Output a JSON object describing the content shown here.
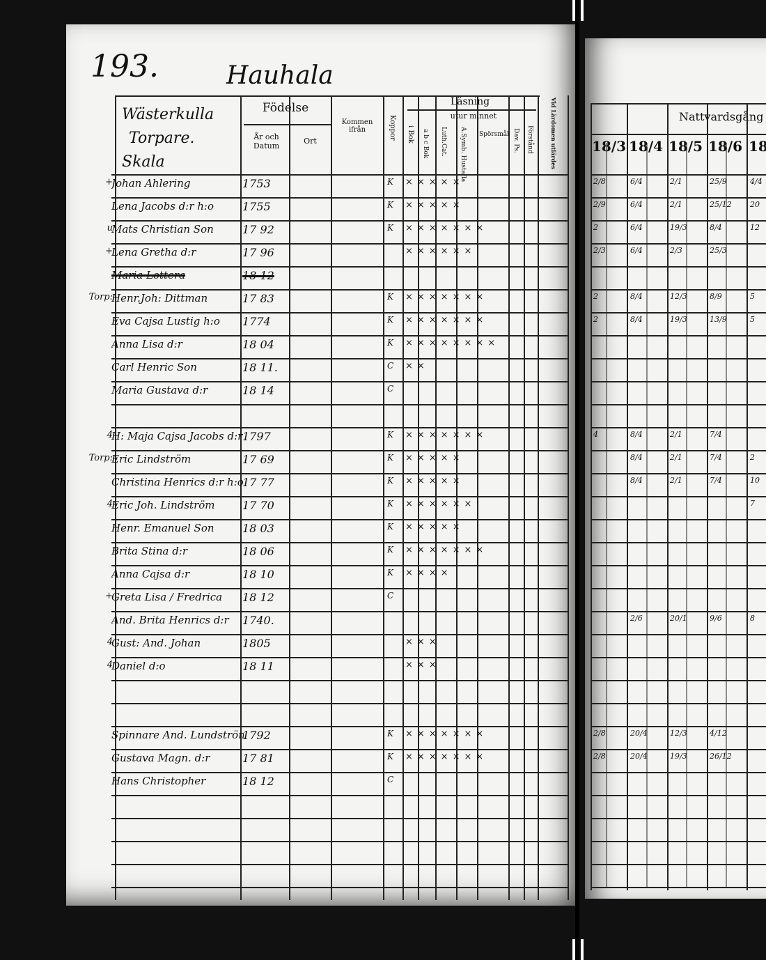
{
  "page_number": "193.",
  "place": "Hauhala",
  "household": {
    "line1": "Wästerkulla",
    "line2": "Torpare.",
    "line3": "Skala"
  },
  "headers": {
    "fodelse": "Födelse",
    "ar_och_datum": "År och Datum",
    "ort": "Ort",
    "kommen_ifran": "Kommen ifrån",
    "koppor": "Koppor",
    "lasning": "Läsning",
    "utur_minnet": "utur minnet",
    "i_bok": "i Bok",
    "a_b_c_bok": "a b c Bok",
    "luth_cat": "Luth.Cat.",
    "a_symb_hustafla": "A.Symb. Hustafla",
    "sporsmal": "Spörsmål",
    "dav_ps": "Dav. Ps.",
    "forstand": "Förstånd",
    "nattvard_hdr": "Vid Lärdomen utlärdes",
    "nattvardsgang": "Nattvardsgång",
    "years": [
      "18/3",
      "18/4",
      "18/5",
      "18/6",
      "18"
    ]
  },
  "rows": [
    {
      "margin": "+",
      "name": "Johan Ahlering",
      "year": "1753",
      "kopp": "K",
      "marks": "×××××",
      "comm": [
        "2/8",
        "6/4",
        "2/1",
        "25/9",
        "4/4"
      ]
    },
    {
      "margin": "",
      "name": "Lena Jacobs d:r h:o",
      "year": "1755",
      "kopp": "K",
      "marks": "×××××",
      "comm": [
        "2/9",
        "6/4",
        "2/1",
        "25/12",
        "20"
      ]
    },
    {
      "margin": "u",
      "name": "Mats Christian Son",
      "year": "17 92",
      "kopp": "K",
      "marks": "×××××××",
      "comm": [
        "2",
        "6/4",
        "19/3",
        "8/4",
        "12"
      ]
    },
    {
      "margin": "+",
      "name": "Lena Gretha d:r",
      "year": "17 96",
      "kopp": "",
      "marks": "××××××",
      "comm": [
        "2/3",
        "6/4",
        "2/3",
        "25/3",
        ""
      ]
    },
    {
      "margin": "",
      "name": "Maria Lottera",
      "year": "18 12",
      "struck": true,
      "kopp": "",
      "marks": "",
      "comm": [
        "",
        "",
        "",
        "",
        ""
      ]
    },
    {
      "margin": "Torp:",
      "name": "Henr.Joh: Dittman",
      "year": "17 83",
      "kopp": "K",
      "marks": "×××××××",
      "comm": [
        "2",
        "8/4",
        "12/3",
        "8/9",
        "5"
      ]
    },
    {
      "margin": "",
      "name": "Eva Cajsa Lustig h:o",
      "year": "1774",
      "kopp": "K",
      "marks": "×××××××",
      "comm": [
        "2",
        "8/4",
        "19/3",
        "13/9",
        "5"
      ]
    },
    {
      "margin": "",
      "name": "Anna Lisa d:r",
      "year": "18 04",
      "kopp": "K",
      "marks": "××××××××",
      "comm": [
        "",
        "",
        "",
        "",
        ""
      ]
    },
    {
      "margin": "",
      "name": "Carl Henric Son",
      "year": "18 11.",
      "kopp": "C",
      "marks": "××",
      "comm": [
        "",
        "",
        "",
        "",
        ""
      ]
    },
    {
      "margin": "",
      "name": "Maria Gustava d:r",
      "year": "18 14",
      "kopp": "C",
      "marks": "",
      "comm": [
        "",
        "",
        "",
        "",
        ""
      ]
    },
    {
      "margin": "",
      "name": "",
      "year": "",
      "kopp": "",
      "marks": "",
      "comm": [
        "",
        "",
        "",
        "",
        ""
      ]
    },
    {
      "margin": "4",
      "name": "H: Maja Cajsa Jacobs d:r",
      "year": "1797",
      "kopp": "K",
      "marks": "×××××××",
      "comm": [
        "4",
        "8/4",
        "2/1",
        "7/4",
        ""
      ]
    },
    {
      "margin": "Torp:",
      "name": "Eric Lindström",
      "year": "17 69",
      "kopp": "K",
      "marks": "×××××",
      "comm": [
        "",
        "8/4",
        "2/1",
        "7/4",
        "2"
      ]
    },
    {
      "margin": "",
      "name": "Christina Henrics d:r h:o",
      "year": "17 77",
      "kopp": "K",
      "marks": "×××××",
      "comm": [
        "",
        "8/4",
        "2/1",
        "7/4",
        "10"
      ]
    },
    {
      "margin": "4",
      "name": "Eric Joh. Lindström",
      "year": "17 70",
      "kopp": "K",
      "marks": "××××××",
      "comm": [
        "",
        "",
        "",
        "",
        "7"
      ]
    },
    {
      "margin": "",
      "name": "Henr. Emanuel Son",
      "year": "18 03",
      "kopp": "K",
      "marks": "×××××",
      "comm": [
        "",
        "",
        "",
        "",
        ""
      ]
    },
    {
      "margin": "",
      "name": "Brita Stina d:r",
      "year": "18 06",
      "kopp": "K",
      "marks": "×××××××",
      "comm": [
        "",
        "",
        "",
        "",
        ""
      ]
    },
    {
      "margin": "",
      "name": "Anna Cajsa d:r",
      "year": "18 10",
      "kopp": "K",
      "marks": "××××",
      "comm": [
        "",
        "",
        "",
        "",
        ""
      ]
    },
    {
      "margin": "+",
      "name": "Greta Lisa / Fredrica",
      "year": "18 12",
      "kopp": "C",
      "marks": "",
      "comm": [
        "",
        "",
        "",
        "",
        ""
      ]
    },
    {
      "margin": "",
      "name": "And. Brita Henrics d:r",
      "year": "1740.",
      "kopp": "",
      "marks": "",
      "comm": [
        "",
        "2/6",
        "20/1",
        "9/6",
        "8"
      ]
    },
    {
      "margin": "4",
      "name": "Gust: And. Johan",
      "year": "1805",
      "kopp": "",
      "marks": "×××",
      "comm": [
        "",
        "",
        "",
        "",
        ""
      ]
    },
    {
      "margin": "4",
      "name": "Daniel d:o",
      "year": "18 11",
      "kopp": "",
      "marks": "×××",
      "comm": [
        "",
        "",
        "",
        "",
        ""
      ]
    },
    {
      "margin": "",
      "name": "",
      "year": "",
      "kopp": "",
      "marks": "",
      "comm": [
        "",
        "",
        "",
        "",
        ""
      ]
    },
    {
      "margin": "",
      "name": "",
      "year": "",
      "kopp": "",
      "marks": "",
      "comm": [
        "",
        "",
        "",
        "",
        ""
      ]
    },
    {
      "margin": "",
      "name": "Spinnare And. Lundström",
      "year": "1792",
      "kopp": "K",
      "marks": "×××××××",
      "comm": [
        "2/8",
        "20/4",
        "12/3",
        "4/12",
        ""
      ]
    },
    {
      "margin": "",
      "name": "Gustava Magn. d:r",
      "year": "17 81",
      "kopp": "K",
      "marks": "×××××××",
      "comm": [
        "2/8",
        "20/4",
        "19/3",
        "26/12",
        ""
      ]
    },
    {
      "margin": "",
      "name": "Hans Christopher",
      "year": "18 12",
      "kopp": "C",
      "marks": "",
      "comm": [
        "",
        "",
        "",
        "",
        ""
      ]
    }
  ]
}
